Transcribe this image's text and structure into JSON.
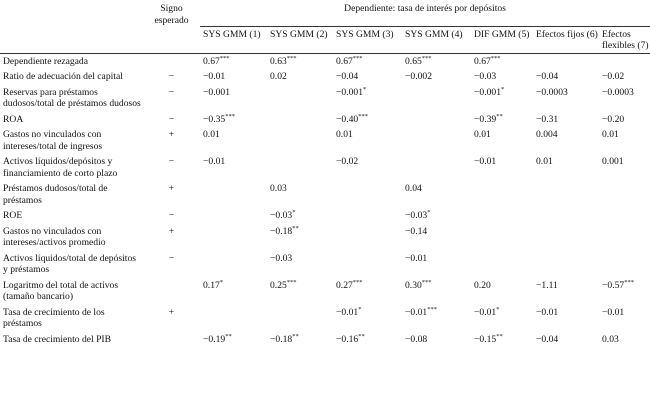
{
  "header": {
    "sign_label": "Signo esperado",
    "dependent_label": "Dependiente: tasa de interés por depósitos",
    "columns": [
      "SYS GMM (1)",
      "SYS GMM (2)",
      "SYS GMM (3)",
      "SYS GMM (4)",
      "DIF GMM (5)",
      "Efectos fijos (6)",
      "Efectos flexibles (7)"
    ]
  },
  "rows": [
    {
      "label": "Dependiente rezagada",
      "sign": "",
      "cells": [
        [
          "0.67",
          "***"
        ],
        [
          "0.63",
          "***"
        ],
        [
          "0.67",
          "***"
        ],
        [
          "0.65",
          "***"
        ],
        [
          "0.67",
          "***"
        ],
        [
          "",
          ""
        ],
        [
          "",
          ""
        ]
      ]
    },
    {
      "label": "Ratio de adecuación del capital",
      "sign": "−",
      "cells": [
        [
          "−0.01",
          ""
        ],
        [
          "0.02",
          ""
        ],
        [
          "−0.04",
          ""
        ],
        [
          "−0.002",
          ""
        ],
        [
          "−0.03",
          ""
        ],
        [
          "−0.04",
          ""
        ],
        [
          "−0.02",
          ""
        ]
      ]
    },
    {
      "label": "Reservas para préstamos dudosos/total de préstamos dudosos",
      "sign": "−",
      "cells": [
        [
          "−0.001",
          ""
        ],
        [
          "",
          ""
        ],
        [
          "−0.001",
          "*"
        ],
        [
          "",
          ""
        ],
        [
          "−0.001",
          "*"
        ],
        [
          "−0.0003",
          ""
        ],
        [
          "−0.0003",
          ""
        ]
      ]
    },
    {
      "label": "ROA",
      "sign": "−",
      "cells": [
        [
          "−0.35",
          "***"
        ],
        [
          "",
          ""
        ],
        [
          "−0.40",
          "***"
        ],
        [
          "",
          ""
        ],
        [
          "−0.39",
          "**"
        ],
        [
          "−0.31",
          ""
        ],
        [
          "−0.20",
          ""
        ]
      ]
    },
    {
      "label": "Gastos no vinculados con intereses/total de ingresos",
      "sign": "+",
      "cells": [
        [
          "0.01",
          ""
        ],
        [
          "",
          ""
        ],
        [
          "0.01",
          ""
        ],
        [
          "",
          ""
        ],
        [
          "0.01",
          ""
        ],
        [
          "0.004",
          ""
        ],
        [
          "0.01",
          ""
        ]
      ]
    },
    {
      "label": "Activos líquidos/depósitos y financiamiento de corto plazo",
      "sign": "−",
      "cells": [
        [
          "−0.01",
          ""
        ],
        [
          "",
          ""
        ],
        [
          "−0.02",
          ""
        ],
        [
          "",
          ""
        ],
        [
          "−0.01",
          ""
        ],
        [
          "0.01",
          ""
        ],
        [
          "0.001",
          ""
        ]
      ]
    },
    {
      "label": "Préstamos dudosos/total de préstamos",
      "sign": "+",
      "cells": [
        [
          "",
          ""
        ],
        [
          "0.03",
          ""
        ],
        [
          "",
          ""
        ],
        [
          "0.04",
          ""
        ],
        [
          "",
          ""
        ],
        [
          "",
          ""
        ],
        [
          "",
          ""
        ]
      ]
    },
    {
      "label": "ROE",
      "sign": "−",
      "cells": [
        [
          "",
          ""
        ],
        [
          "−0.03",
          "*"
        ],
        [
          "",
          ""
        ],
        [
          "−0.03",
          "*"
        ],
        [
          "",
          ""
        ],
        [
          "",
          ""
        ],
        [
          "",
          ""
        ]
      ]
    },
    {
      "label": "Gastos no vinculados con intereses/activos promedio",
      "sign": "+",
      "cells": [
        [
          "",
          ""
        ],
        [
          "−0.18",
          "**"
        ],
        [
          "",
          ""
        ],
        [
          "−0.14",
          ""
        ],
        [
          "",
          ""
        ],
        [
          "",
          ""
        ],
        [
          "",
          ""
        ]
      ]
    },
    {
      "label": "Activos líquidos/total de depósitos y préstamos",
      "sign": "−",
      "cells": [
        [
          "",
          ""
        ],
        [
          "−0.03",
          ""
        ],
        [
          "",
          ""
        ],
        [
          "−0.01",
          ""
        ],
        [
          "",
          ""
        ],
        [
          "",
          ""
        ],
        [
          "",
          ""
        ]
      ]
    },
    {
      "label": "Logaritmo del total de activos (tamaño bancario)",
      "sign": "",
      "cells": [
        [
          "0.17",
          "*"
        ],
        [
          "0.25",
          "***"
        ],
        [
          "0.27",
          "***"
        ],
        [
          "0.30",
          "***"
        ],
        [
          "0.20",
          ""
        ],
        [
          "−1.11",
          ""
        ],
        [
          "−0.57",
          "***"
        ]
      ]
    },
    {
      "label": "Tasa de crecimiento de los préstamos",
      "sign": "+",
      "cells": [
        [
          "",
          ""
        ],
        [
          "",
          ""
        ],
        [
          "−0.01",
          "*"
        ],
        [
          "−0.01",
          "***"
        ],
        [
          "−0.01",
          "*"
        ],
        [
          "−0.01",
          ""
        ],
        [
          "−0.01",
          ""
        ]
      ]
    },
    {
      "label": "Tasa de crecimiento del PIB",
      "sign": "",
      "cells": [
        [
          "−0.19",
          "**"
        ],
        [
          "−0.18",
          "**"
        ],
        [
          "−0.16",
          "**"
        ],
        [
          "−0.08",
          ""
        ],
        [
          "−0.15",
          "**"
        ],
        [
          "−0.04",
          ""
        ],
        [
          "0.03",
          ""
        ]
      ]
    }
  ]
}
